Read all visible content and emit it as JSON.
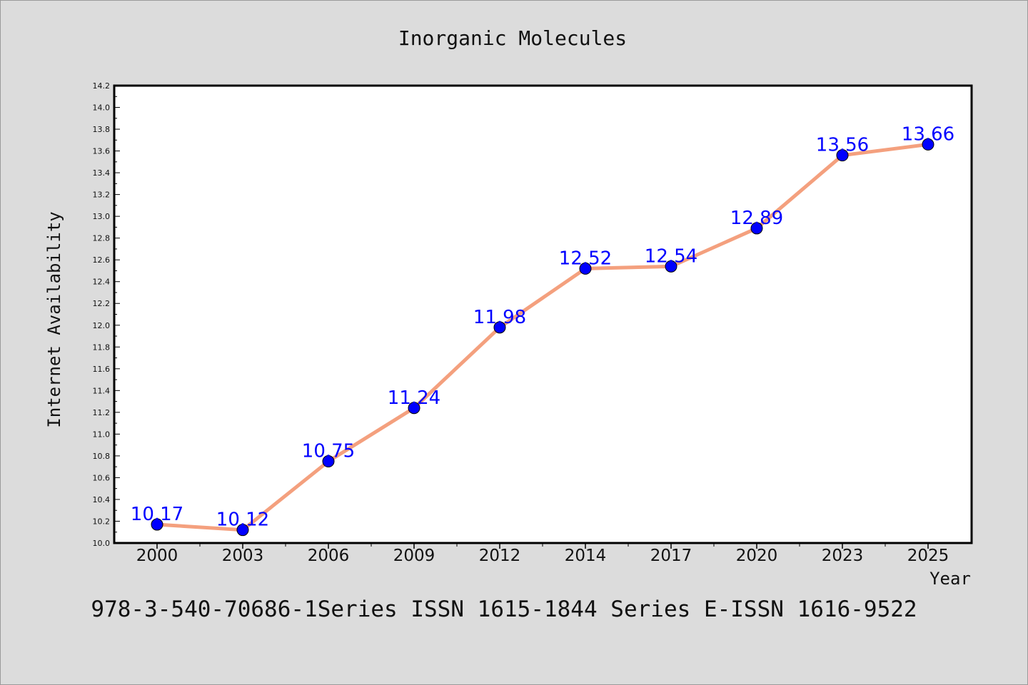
{
  "chart_data": {
    "type": "line",
    "title": "Inorganic Molecules",
    "xlabel": "Year",
    "ylabel": "Internet Availability",
    "categories": [
      "2000",
      "2003",
      "2006",
      "2009",
      "2012",
      "2014",
      "2017",
      "2020",
      "2023",
      "2025"
    ],
    "series": [
      {
        "values": [
          10.17,
          10.12,
          10.75,
          11.24,
          11.98,
          12.52,
          12.54,
          12.89,
          13.56,
          13.66
        ],
        "data_labels": [
          "10.17",
          "10.12",
          "10.75",
          "11.24",
          "11.98",
          "12.52",
          "12.54",
          "12.89",
          "13.56",
          "13.66"
        ],
        "line_color": "#f4a07e",
        "marker_color": "#0000ff"
      }
    ],
    "ylim": [
      10.0,
      14.2
    ],
    "yticks": [
      "10.0",
      "10.2",
      "10.4",
      "10.6",
      "10.8",
      "11.0",
      "11.2",
      "11.4",
      "11.6",
      "11.8",
      "12.0",
      "12.2",
      "12.4",
      "12.6",
      "12.8",
      "13.0",
      "13.2",
      "13.4",
      "13.6",
      "13.8",
      "14.0",
      "14.2"
    ],
    "grid": false,
    "legend": "none",
    "data_label_color": "#0000ff"
  },
  "footer": {
    "text": "978-3-540-70686-1Series ISSN 1615-1844 Series E-ISSN 1616-9522"
  }
}
